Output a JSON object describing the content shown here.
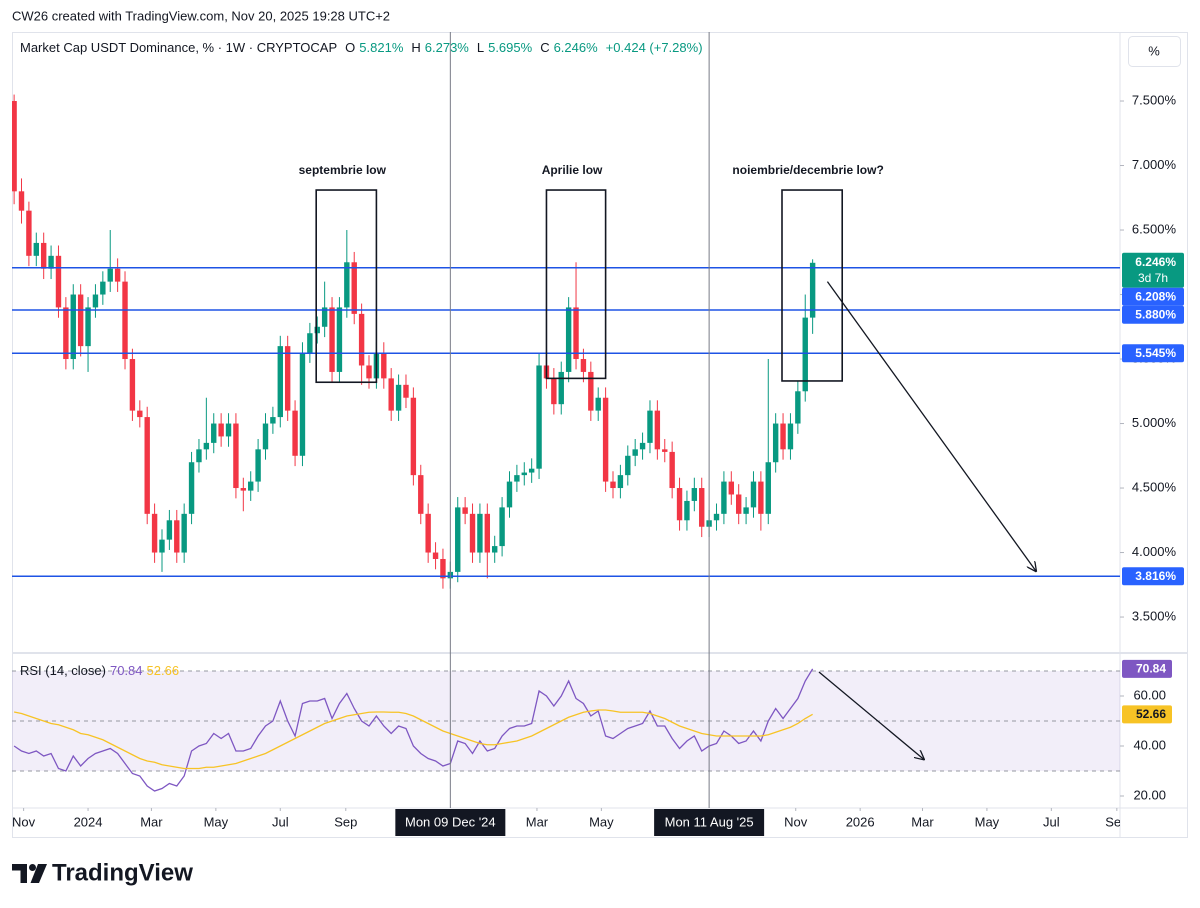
{
  "watermark": "CW26 created with TradingView.com, Nov 20, 2025 19:28 UTC+2",
  "brand": "TradingView",
  "scale_button": "%",
  "chart_data": {
    "type": "candlestick",
    "title": "Market Cap USDT Dominance, % · 1W · CRYPTOCAP",
    "legend": [
      {
        "key": "O",
        "label": "5.821%"
      },
      {
        "key": "H",
        "label": "6.273%"
      },
      {
        "key": "L",
        "label": "5.695%"
      },
      {
        "key": "C",
        "label": "6.246%"
      }
    ],
    "change": "+0.424 (+7.28%)",
    "up_color": "#089981",
    "down_color": "#f23645",
    "x": [
      "2023-10-23",
      "2023-10-30",
      "2023-11-06",
      "2023-11-13",
      "2023-11-20",
      "2023-11-27",
      "2023-12-04",
      "2023-12-11",
      "2023-12-18",
      "2023-12-25",
      "2024-01-01",
      "2024-01-08",
      "2024-01-15",
      "2024-01-22",
      "2024-01-29",
      "2024-02-05",
      "2024-02-12",
      "2024-02-19",
      "2024-02-26",
      "2024-03-04",
      "2024-03-11",
      "2024-03-18",
      "2024-03-25",
      "2024-04-01",
      "2024-04-08",
      "2024-04-15",
      "2024-04-22",
      "2024-04-29",
      "2024-05-06",
      "2024-05-13",
      "2024-05-20",
      "2024-05-27",
      "2024-06-03",
      "2024-06-10",
      "2024-06-17",
      "2024-06-24",
      "2024-07-01",
      "2024-07-08",
      "2024-07-15",
      "2024-07-22",
      "2024-07-29",
      "2024-08-05",
      "2024-08-12",
      "2024-08-19",
      "2024-08-26",
      "2024-09-02",
      "2024-09-09",
      "2024-09-16",
      "2024-09-23",
      "2024-09-30",
      "2024-10-07",
      "2024-10-14",
      "2024-10-21",
      "2024-10-28",
      "2024-11-04",
      "2024-11-11",
      "2024-11-18",
      "2024-11-25",
      "2024-12-02",
      "2024-12-09",
      "2024-12-16",
      "2024-12-23",
      "2024-12-30",
      "2025-01-06",
      "2025-01-13",
      "2025-01-20",
      "2025-01-27",
      "2025-02-03",
      "2025-02-10",
      "2025-02-17",
      "2025-02-24",
      "2025-03-03",
      "2025-03-10",
      "2025-03-17",
      "2025-03-24",
      "2025-03-31",
      "2025-04-07",
      "2025-04-14",
      "2025-04-21",
      "2025-04-28",
      "2025-05-05",
      "2025-05-12",
      "2025-05-19",
      "2025-05-26",
      "2025-06-02",
      "2025-06-09",
      "2025-06-16",
      "2025-06-23",
      "2025-06-30",
      "2025-07-07",
      "2025-07-14",
      "2025-07-21",
      "2025-07-28",
      "2025-08-04",
      "2025-08-11",
      "2025-08-18",
      "2025-08-25",
      "2025-09-01",
      "2025-09-08",
      "2025-09-15",
      "2025-09-22",
      "2025-09-29",
      "2025-10-06",
      "2025-10-13",
      "2025-10-20",
      "2025-10-27",
      "2025-11-03",
      "2025-11-10",
      "2025-11-17"
    ],
    "open": [
      7.5,
      6.8,
      6.65,
      6.3,
      6.4,
      6.2,
      6.3,
      5.9,
      5.5,
      6.0,
      5.6,
      5.9,
      6.0,
      6.1,
      6.2,
      6.1,
      5.5,
      5.1,
      5.05,
      4.3,
      4.0,
      4.1,
      4.25,
      4.0,
      4.3,
      4.7,
      4.8,
      4.85,
      5.0,
      4.9,
      5.0,
      4.5,
      4.48,
      4.55,
      4.8,
      5.0,
      5.05,
      5.6,
      5.1,
      4.75,
      5.55,
      5.7,
      5.75,
      5.9,
      5.4,
      5.9,
      6.25,
      5.85,
      5.45,
      5.35,
      5.55,
      5.35,
      5.1,
      5.3,
      5.2,
      4.6,
      4.3,
      4.0,
      3.95,
      3.8,
      3.85,
      4.35,
      4.3,
      4.0,
      4.3,
      4.0,
      4.05,
      4.35,
      4.55,
      4.6,
      4.62,
      4.65,
      5.45,
      5.35,
      5.15,
      5.4,
      5.9,
      5.5,
      5.4,
      5.1,
      5.2,
      4.55,
      4.5,
      4.6,
      4.75,
      4.8,
      4.85,
      5.1,
      4.8,
      4.78,
      4.5,
      4.25,
      4.4,
      4.5,
      4.2,
      4.25,
      4.3,
      4.55,
      4.45,
      4.3,
      4.35,
      4.55,
      4.3,
      4.7,
      5.0,
      4.8,
      5.0,
      5.25,
      5.821
    ],
    "high": [
      7.55,
      6.9,
      6.72,
      6.48,
      6.48,
      6.38,
      6.38,
      5.98,
      6.08,
      6.08,
      5.98,
      6.08,
      6.18,
      6.5,
      6.28,
      6.18,
      5.58,
      5.18,
      5.13,
      4.38,
      4.18,
      4.33,
      4.33,
      4.38,
      4.78,
      4.88,
      5.2,
      5.08,
      5.08,
      5.08,
      5.08,
      4.58,
      4.63,
      4.88,
      5.08,
      5.13,
      5.68,
      5.68,
      5.18,
      5.63,
      5.78,
      5.83,
      6.1,
      5.98,
      5.98,
      6.5,
      6.33,
      5.93,
      5.53,
      5.63,
      5.63,
      5.43,
      5.38,
      5.38,
      5.28,
      4.68,
      4.38,
      4.08,
      4.03,
      3.93,
      4.43,
      4.43,
      4.38,
      4.38,
      4.38,
      4.13,
      4.43,
      4.63,
      4.68,
      4.7,
      4.73,
      5.55,
      5.53,
      5.43,
      5.48,
      5.98,
      6.25,
      5.58,
      5.48,
      5.28,
      5.28,
      4.63,
      4.68,
      4.83,
      4.88,
      4.93,
      5.18,
      5.18,
      4.88,
      4.86,
      4.58,
      4.48,
      4.58,
      4.58,
      4.33,
      4.38,
      4.63,
      4.63,
      4.53,
      4.43,
      4.63,
      4.63,
      5.5,
      5.08,
      5.08,
      5.08,
      5.33,
      6.0,
      6.273
    ],
    "low": [
      6.7,
      6.55,
      6.22,
      6.22,
      6.12,
      6.12,
      5.82,
      5.42,
      5.42,
      5.52,
      5.4,
      5.82,
      5.92,
      6.02,
      6.02,
      5.42,
      5.02,
      4.97,
      4.22,
      3.92,
      3.85,
      4.02,
      3.92,
      3.92,
      4.22,
      4.62,
      4.72,
      4.77,
      4.82,
      4.82,
      4.42,
      4.32,
      4.4,
      4.47,
      4.72,
      4.92,
      4.97,
      5.02,
      4.67,
      4.67,
      5.47,
      5.62,
      5.67,
      5.32,
      5.32,
      5.82,
      5.77,
      5.3,
      5.27,
      5.27,
      5.27,
      5.02,
      5.02,
      5.12,
      4.52,
      4.22,
      3.92,
      3.87,
      3.72,
      3.72,
      3.77,
      4.22,
      3.92,
      3.92,
      3.8,
      3.92,
      3.97,
      4.27,
      4.47,
      4.52,
      4.54,
      4.57,
      5.27,
      5.07,
      5.07,
      5.32,
      5.42,
      5.32,
      5.02,
      5.02,
      4.47,
      4.42,
      4.42,
      4.52,
      4.67,
      4.72,
      4.77,
      4.72,
      4.7,
      4.42,
      4.17,
      4.17,
      4.32,
      4.12,
      4.12,
      4.17,
      4.22,
      4.37,
      4.22,
      4.22,
      4.27,
      4.17,
      4.22,
      4.62,
      4.72,
      4.72,
      4.92,
      5.17,
      5.695
    ],
    "close": [
      6.8,
      6.65,
      6.3,
      6.4,
      6.2,
      6.3,
      5.9,
      5.5,
      6.0,
      5.6,
      5.9,
      6.0,
      6.1,
      6.2,
      6.1,
      5.5,
      5.1,
      5.05,
      4.3,
      4.0,
      4.1,
      4.25,
      4.0,
      4.3,
      4.7,
      4.8,
      4.85,
      5.0,
      4.9,
      5.0,
      4.5,
      4.48,
      4.55,
      4.8,
      5.0,
      5.05,
      5.6,
      5.1,
      4.75,
      5.55,
      5.7,
      5.75,
      5.9,
      5.4,
      5.9,
      6.25,
      5.85,
      5.45,
      5.35,
      5.55,
      5.35,
      5.1,
      5.3,
      5.2,
      4.6,
      4.3,
      4.0,
      3.95,
      3.8,
      3.85,
      4.35,
      4.3,
      4.0,
      4.3,
      4.0,
      4.05,
      4.35,
      4.55,
      4.6,
      4.62,
      4.65,
      5.45,
      5.35,
      5.15,
      5.4,
      5.9,
      5.5,
      5.4,
      5.1,
      5.2,
      4.55,
      4.5,
      4.6,
      4.75,
      4.8,
      4.85,
      5.1,
      4.8,
      4.78,
      4.5,
      4.25,
      4.4,
      4.5,
      4.2,
      4.25,
      4.3,
      4.55,
      4.45,
      4.3,
      4.35,
      4.55,
      4.3,
      4.7,
      5.0,
      4.8,
      5.0,
      5.25,
      5.821,
      6.246
    ],
    "xlim": [
      "2023-10-21",
      "2026-09-04"
    ],
    "xticks": [
      {
        "value": "2023-11-01",
        "label": "Nov"
      },
      {
        "value": "2024-01-01",
        "label": "2024"
      },
      {
        "value": "2024-03-01",
        "label": "Mar"
      },
      {
        "value": "2024-05-01",
        "label": "May"
      },
      {
        "value": "2024-07-01",
        "label": "Jul"
      },
      {
        "value": "2024-09-01",
        "label": "Sep"
      },
      {
        "value": "2025-03-01",
        "label": "Mar"
      },
      {
        "value": "2025-05-01",
        "label": "May"
      },
      {
        "value": "2025-11-01",
        "label": "Nov"
      },
      {
        "value": "2026-01-01",
        "label": "2026"
      },
      {
        "value": "2026-03-01",
        "label": "Mar"
      },
      {
        "value": "2026-05-01",
        "label": "May"
      },
      {
        "value": "2026-07-01",
        "label": "Jul"
      },
      {
        "value": "2026-09-01",
        "label": "Sep"
      }
    ],
    "ylim": [
      3.229,
      8.035
    ],
    "yticks": [
      {
        "value": 3.5,
        "label": "3.500%"
      },
      {
        "value": 4,
        "label": "4.000%"
      },
      {
        "value": 4.5,
        "label": "4.500%"
      },
      {
        "value": 5,
        "label": "5.000%"
      },
      {
        "value": 5.5,
        "label": "5.500%"
      },
      {
        "value": 6,
        "label": "6.000%"
      },
      {
        "value": 6.5,
        "label": "6.500%"
      },
      {
        "value": 7,
        "label": "7.000%"
      },
      {
        "value": 7.5,
        "label": "7.500%"
      }
    ],
    "price_label": {
      "value": 6.246,
      "label": "6.246%",
      "countdown": "3d 7h"
    },
    "hlines": [
      {
        "value": 6.208,
        "label": "6.208%"
      },
      {
        "value": 5.88,
        "label": "5.880%"
      },
      {
        "value": 5.545,
        "label": "5.545%"
      },
      {
        "value": 3.816,
        "label": "3.816%"
      }
    ],
    "hline_color": "#1e53e5",
    "crosshairs": [
      {
        "x": "2024-12-09",
        "label": "Mon 09 Dec '24"
      },
      {
        "x": "2025-08-11",
        "label": "Mon 11 Aug '25"
      }
    ],
    "boxes": [
      {
        "text": "septembrie low",
        "x": [
          "2024-08-04",
          "2024-09-30"
        ],
        "y": [
          5.32,
          6.81
        ]
      },
      {
        "text": "Aprilie low",
        "x": [
          "2025-03-10",
          "2025-05-05"
        ],
        "y": [
          5.35,
          6.81
        ]
      },
      {
        "text": "noiembrie/decembrie low?",
        "x": [
          "2025-10-19",
          "2025-12-15"
        ],
        "y": [
          5.33,
          6.81
        ]
      }
    ],
    "arrows": [
      {
        "x": [
          "2025-12-01",
          "2026-06-17"
        ],
        "y": [
          6.1,
          3.85
        ]
      }
    ],
    "indicator": {
      "type": "line",
      "title": "RSI (14, close)",
      "ylim": [
        15.2,
        76.4
      ],
      "yticks": [
        {
          "value": 20,
          "label": "20.00"
        },
        {
          "value": 40,
          "label": "40.00"
        },
        {
          "value": 60,
          "label": "60.00"
        }
      ],
      "band": [
        30,
        70
      ],
      "midline": 50,
      "series": [
        {
          "color": "#7e57c2",
          "values": [
            40,
            38,
            37,
            38,
            36,
            37,
            31,
            30,
            36,
            32,
            35,
            37,
            38,
            39,
            37,
            33,
            29,
            28,
            24,
            22,
            23,
            25,
            24,
            28,
            38,
            40,
            41,
            45,
            43,
            45,
            38,
            38,
            39,
            44,
            48,
            50,
            58,
            50,
            44,
            57,
            58,
            58,
            59,
            51,
            57,
            61,
            55,
            50,
            48,
            52,
            48,
            45,
            48,
            47,
            40,
            37,
            35,
            34,
            32,
            33,
            42,
            41,
            37,
            42,
            38,
            39,
            44,
            47,
            48,
            48,
            49,
            62,
            60,
            56,
            60,
            66,
            59,
            57,
            52,
            54,
            44,
            43,
            45,
            47,
            48,
            49,
            54,
            48,
            48,
            43,
            39,
            42,
            44,
            38,
            40,
            41,
            46,
            44,
            41,
            42,
            46,
            42,
            50,
            55,
            51,
            55,
            59,
            66,
            70.84
          ]
        },
        {
          "color": "#f7c325",
          "values": [
            53.6,
            53,
            52,
            51,
            50,
            49,
            48.5,
            47.5,
            46.5,
            45,
            44.5,
            43.5,
            42.5,
            41,
            39.5,
            38,
            36.5,
            35,
            34,
            33.5,
            32.5,
            32,
            31.5,
            31,
            31,
            31,
            31.5,
            31.5,
            32,
            32.5,
            33,
            34,
            35,
            36,
            37,
            38.5,
            40,
            41.5,
            43,
            44.5,
            46,
            47.5,
            49,
            50,
            51,
            52,
            52.5,
            53,
            53.5,
            53.6,
            53.6,
            53.5,
            53.5,
            53,
            52,
            50.5,
            49,
            47.5,
            46,
            45,
            44,
            43,
            42,
            41,
            40.5,
            40.5,
            41,
            41.5,
            42,
            43,
            44,
            45.5,
            47,
            48.5,
            50,
            51.5,
            52.5,
            53.5,
            54,
            54.4,
            54.4,
            54,
            53.5,
            53.5,
            53.5,
            53.5,
            53,
            52,
            51,
            49.5,
            48,
            47,
            46,
            45,
            44.5,
            44,
            44,
            44,
            44,
            44,
            44,
            44,
            44.5,
            45.5,
            46.5,
            47.5,
            49,
            51,
            52.66
          ]
        }
      ],
      "arrow": {
        "x": [
          "2025-11-23",
          "2026-03-03"
        ],
        "y": [
          69.6,
          34.4
        ]
      }
    }
  }
}
